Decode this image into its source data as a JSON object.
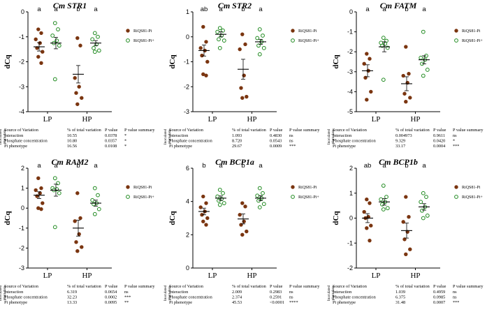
{
  "colors": {
    "bg": "#ffffff",
    "ink": "#000000",
    "low_pi": "#7a3510",
    "high_pi_fill": "#ffffff",
    "high_pi_stroke": "#1f8a1f"
  },
  "table_headers": {
    "source": "Source of Variation",
    "pct": "% of total variation",
    "p": "P value",
    "summary": "P value summary"
  },
  "table_side_label": [
    "Inoculated",
    "plant data"
  ],
  "chart_data": [
    {
      "type": "scatter",
      "title": "Cm STR1",
      "xlabel": "",
      "ylabel": "dCq",
      "ylim": [
        -4,
        0
      ],
      "yticks": [
        -4,
        -3,
        -2,
        -1,
        0
      ],
      "categories": [
        "LP",
        "HP"
      ],
      "legend": [
        "RiQS81-Pi",
        "RiQS81-Pi+"
      ],
      "series": [
        {
          "group": "LP",
          "name": "RiQS81-Pi",
          "values": [
            -0.7,
            -0.85,
            -1.1,
            -1.25,
            -1.45,
            -1.6,
            -1.8,
            -2.05
          ],
          "mean": -1.4,
          "sem": 0.17,
          "letter": "a"
        },
        {
          "group": "LP",
          "name": "RiQS81-Pi+",
          "values": [
            -0.45,
            -0.7,
            -0.95,
            -1.15,
            -1.25,
            -1.35,
            -2.7
          ],
          "mean": -1.25,
          "sem": 0.23,
          "letter": "a"
        },
        {
          "group": "HP",
          "name": "RiQS81-Pi",
          "values": [
            -1.05,
            -1.35,
            -2.65,
            -3.0,
            -3.25,
            -3.45,
            -3.7
          ],
          "mean": -2.5,
          "sem": 0.35,
          "letter": "b"
        },
        {
          "group": "HP",
          "name": "RiQS81-Pi+",
          "values": [
            -0.85,
            -1.0,
            -1.1,
            -1.3,
            -1.45,
            -1.55,
            -1.6
          ],
          "mean": -1.25,
          "sem": 0.1,
          "letter": "a"
        }
      ],
      "anova": [
        {
          "source": "Interaction",
          "pct": "10.55",
          "p": "0.0378",
          "summary": "*"
        },
        {
          "source": "Phosphate concentration",
          "pct": "10.80",
          "p": "0.0357",
          "summary": "*"
        },
        {
          "source": "Pi phenotype",
          "pct": "16.56",
          "p": "0.0108",
          "summary": "*"
        }
      ]
    },
    {
      "type": "scatter",
      "title": "Cm STR2",
      "xlabel": "",
      "ylabel": "dCq",
      "ylim": [
        -3,
        1
      ],
      "yticks": [
        -3,
        -2,
        -1,
        0,
        1
      ],
      "categories": [
        "LP",
        "HP"
      ],
      "legend": [
        "RiQS81-Pi",
        "RiQS81-Pi+"
      ],
      "series": [
        {
          "group": "LP",
          "name": "RiQS81-Pi",
          "values": [
            0.4,
            -0.2,
            -0.45,
            -0.55,
            -0.75,
            -1.0,
            -1.5,
            -1.55
          ],
          "mean": -0.55,
          "sem": 0.22,
          "letter": "ab"
        },
        {
          "group": "LP",
          "name": "RiQS81-Pi+",
          "values": [
            0.35,
            0.25,
            0.2,
            0.05,
            -0.1,
            -0.15,
            -0.45
          ],
          "mean": 0.1,
          "sem": 0.1,
          "letter": "a"
        },
        {
          "group": "HP",
          "name": "RiQS81-Pi",
          "values": [
            0.1,
            -0.3,
            -0.5,
            -1.55,
            -2.05,
            -2.4,
            -2.45
          ],
          "mean": -1.3,
          "sem": 0.4,
          "letter": "b"
        },
        {
          "group": "HP",
          "name": "RiQS81-Pi+",
          "values": [
            0.3,
            0.05,
            -0.05,
            -0.2,
            -0.35,
            -0.45,
            -0.7
          ],
          "mean": -0.2,
          "sem": 0.1,
          "letter": "a"
        }
      ],
      "anova": [
        {
          "source": "Interaction",
          "pct": "1.093",
          "p": "0.4830",
          "summary": "ns"
        },
        {
          "source": "Phosphate concentration",
          "pct": "8.720",
          "p": "0.0543",
          "summary": "ns"
        },
        {
          "source": "Pi phenotype",
          "pct": "29.67",
          "p": "0.0009",
          "summary": "***"
        }
      ]
    },
    {
      "type": "scatter",
      "title": "Cm FATM",
      "xlabel": "",
      "ylabel": "dCq",
      "ylim": [
        -5,
        0
      ],
      "yticks": [
        -5,
        -4,
        -3,
        -2,
        -1,
        0
      ],
      "categories": [
        "LP",
        "HP"
      ],
      "legend": [
        "RiQS81-Pi",
        "RiQS81-Pi+"
      ],
      "series": [
        {
          "group": "LP",
          "name": "RiQS81-Pi",
          "values": [
            -2.1,
            -2.35,
            -2.6,
            -2.95,
            -3.3,
            -4.0,
            -4.4
          ],
          "mean": -2.95,
          "sem": 0.3,
          "letter": "a"
        },
        {
          "group": "LP",
          "name": "RiQS81-Pi+",
          "values": [
            -1.3,
            -1.45,
            -1.55,
            -1.6,
            -1.7,
            -1.8,
            -3.4
          ],
          "mean": -1.75,
          "sem": 0.25,
          "letter": "a"
        },
        {
          "group": "HP",
          "name": "RiQS81-Pi",
          "values": [
            -1.75,
            -3.1,
            -3.2,
            -3.55,
            -4.1,
            -4.3,
            -4.5
          ],
          "mean": -3.6,
          "sem": 0.35,
          "letter": "b"
        },
        {
          "group": "HP",
          "name": "RiQS81-Pi+",
          "values": [
            -1.0,
            -2.2,
            -2.3,
            -2.4,
            -2.6,
            -2.9,
            -3.2
          ],
          "mean": -2.4,
          "sem": 0.2,
          "letter": "a"
        }
      ],
      "anova": [
        {
          "source": "Interaction",
          "pct": "0.004973",
          "p": "0.9611",
          "summary": "ns"
        },
        {
          "source": "Phosphate concentration",
          "pct": "9.329",
          "p": "0.0420",
          "summary": "*"
        },
        {
          "source": "Pi phenotype",
          "pct": "33.17",
          "p": "0.0004",
          "summary": "***"
        }
      ]
    },
    {
      "type": "scatter",
      "title": "Cm RAM2",
      "xlabel": "",
      "ylabel": "dCq",
      "ylim": [
        -3,
        2
      ],
      "yticks": [
        -3,
        -2,
        -1,
        0,
        1,
        2
      ],
      "categories": [
        "LP",
        "HP"
      ],
      "legend": [
        "RiQS81-Pi",
        "RiQS81-Pi+"
      ],
      "series": [
        {
          "group": "LP",
          "name": "RiQS81-Pi",
          "values": [
            1.5,
            1.0,
            0.9,
            0.75,
            0.6,
            0.25,
            0.0,
            -0.05
          ],
          "mean": 0.65,
          "sem": 0.17,
          "letter": "a"
        },
        {
          "group": "LP",
          "name": "RiQS81-Pi+",
          "values": [
            1.5,
            1.25,
            1.0,
            0.95,
            0.9,
            0.75,
            -0.95
          ],
          "mean": 0.9,
          "sem": 0.3,
          "letter": "a"
        },
        {
          "group": "HP",
          "name": "RiQS81-Pi",
          "values": [
            0.75,
            -0.5,
            -0.65,
            -1.3,
            -1.7,
            -1.95,
            -2.15
          ],
          "mean": -1.0,
          "sem": 0.4,
          "letter": "b"
        },
        {
          "group": "HP",
          "name": "RiQS81-Pi+",
          "values": [
            1.0,
            0.65,
            0.4,
            0.25,
            0.2,
            -0.05,
            -0.3
          ],
          "mean": 0.25,
          "sem": 0.15,
          "letter": "a"
        }
      ],
      "anova": [
        {
          "source": "Interaction",
          "pct": "6.319",
          "p": "0.0654",
          "summary": "ns"
        },
        {
          "source": "Phosphate concentration",
          "pct": "32.23",
          "p": "0.0002",
          "summary": "***"
        },
        {
          "source": "Pi phenotype",
          "pct": "13.33",
          "p": "0.0095",
          "summary": "**"
        }
      ]
    },
    {
      "type": "scatter",
      "title": "Cm BCP1a",
      "xlabel": "",
      "ylabel": "dCq",
      "ylim": [
        0,
        6
      ],
      "yticks": [
        0,
        2,
        4,
        6
      ],
      "categories": [
        "LP",
        "HP"
      ],
      "legend": [
        "RiQS81-Pi",
        "RiQS81-Pi+"
      ],
      "series": [
        {
          "group": "LP",
          "name": "RiQS81-Pi",
          "values": [
            4.3,
            3.9,
            3.65,
            3.4,
            3.2,
            3.0,
            2.8,
            2.6
          ],
          "mean": 3.4,
          "sem": 0.2,
          "letter": "b"
        },
        {
          "group": "LP",
          "name": "RiQS81-Pi+",
          "values": [
            4.7,
            4.5,
            4.3,
            4.15,
            4.05,
            3.9,
            3.8
          ],
          "mean": 4.2,
          "sem": 0.13,
          "letter": "a"
        },
        {
          "group": "HP",
          "name": "RiQS81-Pi",
          "values": [
            3.9,
            3.7,
            3.2,
            2.8,
            2.6,
            2.2,
            2.0
          ],
          "mean": 2.95,
          "sem": 0.3,
          "letter": "b"
        },
        {
          "group": "HP",
          "name": "RiQS81-Pi+",
          "values": [
            4.8,
            4.5,
            4.35,
            4.2,
            4.05,
            3.85,
            3.65
          ],
          "mean": 4.2,
          "sem": 0.15,
          "letter": "a"
        }
      ],
      "anova": [
        {
          "source": "Interaction",
          "pct": "2.009",
          "p": "0.2983",
          "summary": "ns"
        },
        {
          "source": "Phosphate concentration",
          "pct": "2.374",
          "p": "0.2591",
          "summary": "ns"
        },
        {
          "source": "Pi phenotype",
          "pct": "45.53",
          "p": "<0.0001",
          "summary": "****"
        }
      ]
    },
    {
      "type": "scatter",
      "title": "Cm BCP1b",
      "xlabel": "",
      "ylabel": "dCq",
      "ylim": [
        -2,
        2
      ],
      "yticks": [
        -2,
        -1,
        0,
        1,
        2
      ],
      "categories": [
        "LP",
        "HP"
      ],
      "legend": [
        "RiQS81-Pi",
        "RiQS81-Pi+"
      ],
      "series": [
        {
          "group": "LP",
          "name": "RiQS81-Pi",
          "values": [
            0.75,
            0.6,
            0.25,
            0.05,
            0.0,
            -0.3,
            -0.4,
            -0.9
          ],
          "mean": 0.0,
          "sem": 0.18,
          "letter": "ab"
        },
        {
          "group": "LP",
          "name": "RiQS81-Pi+",
          "values": [
            1.3,
            0.85,
            0.75,
            0.65,
            0.55,
            0.4,
            0.35
          ],
          "mean": 0.65,
          "sem": 0.13,
          "letter": "a"
        },
        {
          "group": "HP",
          "name": "RiQS81-Pi",
          "values": [
            0.85,
            0.05,
            -0.15,
            -0.55,
            -0.85,
            -1.25,
            -1.45
          ],
          "mean": -0.5,
          "sem": 0.3,
          "letter": "b"
        },
        {
          "group": "HP",
          "name": "RiQS81-Pi+",
          "values": [
            1.0,
            0.85,
            0.65,
            0.45,
            0.3,
            0.1,
            0.0
          ],
          "mean": 0.45,
          "sem": 0.13,
          "letter": "a"
        }
      ],
      "anova": [
        {
          "source": "Interaction",
          "pct": "1.039",
          "p": "0.4959",
          "summary": "ns"
        },
        {
          "source": "Phosphate concentration",
          "pct": "6.375",
          "p": "0.0985",
          "summary": "ns"
        },
        {
          "source": "Pi phenotype",
          "pct": "31.48",
          "p": "0.0007",
          "summary": "***"
        }
      ]
    }
  ]
}
